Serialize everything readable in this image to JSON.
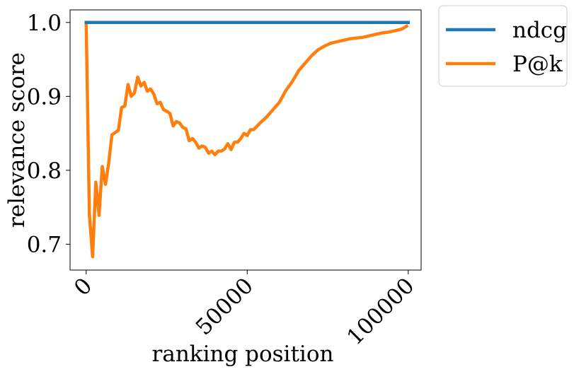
{
  "chart_data": {
    "type": "line",
    "xlabel": "ranking position",
    "ylabel": "relevance score",
    "xlim": [
      -5000,
      104000
    ],
    "ylim": [
      0.665,
      1.017
    ],
    "xticks": [
      0,
      50000,
      100000
    ],
    "xtick_labels": [
      "0",
      "50000",
      "100000"
    ],
    "yticks": [
      0.7,
      0.8,
      0.9,
      1.0
    ],
    "ytick_labels": [
      "0.7",
      "0.8",
      "0.9",
      "1.0"
    ],
    "grid": false,
    "legend": {
      "placement": "outside-top-right",
      "entries": [
        "ndcg",
        "P@k"
      ]
    },
    "series": [
      {
        "name": "ndcg",
        "color": "#1f77b4",
        "x": [
          0,
          100000
        ],
        "y": [
          1.0,
          1.0
        ]
      },
      {
        "name": "P@k",
        "color": "#ff7f0e",
        "x": [
          0,
          1000,
          2000,
          3000,
          4000,
          5000,
          6000,
          7000,
          8000,
          10000,
          11000,
          12000,
          13000,
          14000,
          15000,
          16000,
          17000,
          18000,
          19000,
          20000,
          21000,
          22000,
          23000,
          24000,
          25000,
          26000,
          27000,
          28000,
          29000,
          30000,
          31000,
          32000,
          33000,
          34000,
          35000,
          36000,
          37000,
          38000,
          39000,
          40000,
          41000,
          42000,
          43000,
          44000,
          45000,
          46000,
          47000,
          48000,
          49000,
          50000,
          51000,
          52000,
          54000,
          56000,
          58000,
          60000,
          62000,
          64000,
          66000,
          68000,
          70000,
          72000,
          74000,
          76000,
          78000,
          80000,
          82000,
          84000,
          86000,
          88000,
          90000,
          92000,
          94000,
          96000,
          98000,
          99500
        ],
        "y": [
          1.0,
          0.74,
          0.683,
          0.784,
          0.739,
          0.805,
          0.781,
          0.81,
          0.848,
          0.854,
          0.885,
          0.887,
          0.916,
          0.9,
          0.905,
          0.926,
          0.914,
          0.919,
          0.907,
          0.91,
          0.903,
          0.89,
          0.892,
          0.882,
          0.88,
          0.877,
          0.86,
          0.866,
          0.864,
          0.858,
          0.856,
          0.84,
          0.843,
          0.838,
          0.83,
          0.833,
          0.831,
          0.823,
          0.826,
          0.821,
          0.826,
          0.826,
          0.829,
          0.836,
          0.828,
          0.838,
          0.838,
          0.843,
          0.85,
          0.847,
          0.855,
          0.855,
          0.864,
          0.872,
          0.882,
          0.892,
          0.908,
          0.92,
          0.935,
          0.945,
          0.955,
          0.963,
          0.968,
          0.972,
          0.974,
          0.976,
          0.978,
          0.979,
          0.98,
          0.982,
          0.984,
          0.986,
          0.987,
          0.989,
          0.991,
          0.995
        ]
      }
    ]
  }
}
